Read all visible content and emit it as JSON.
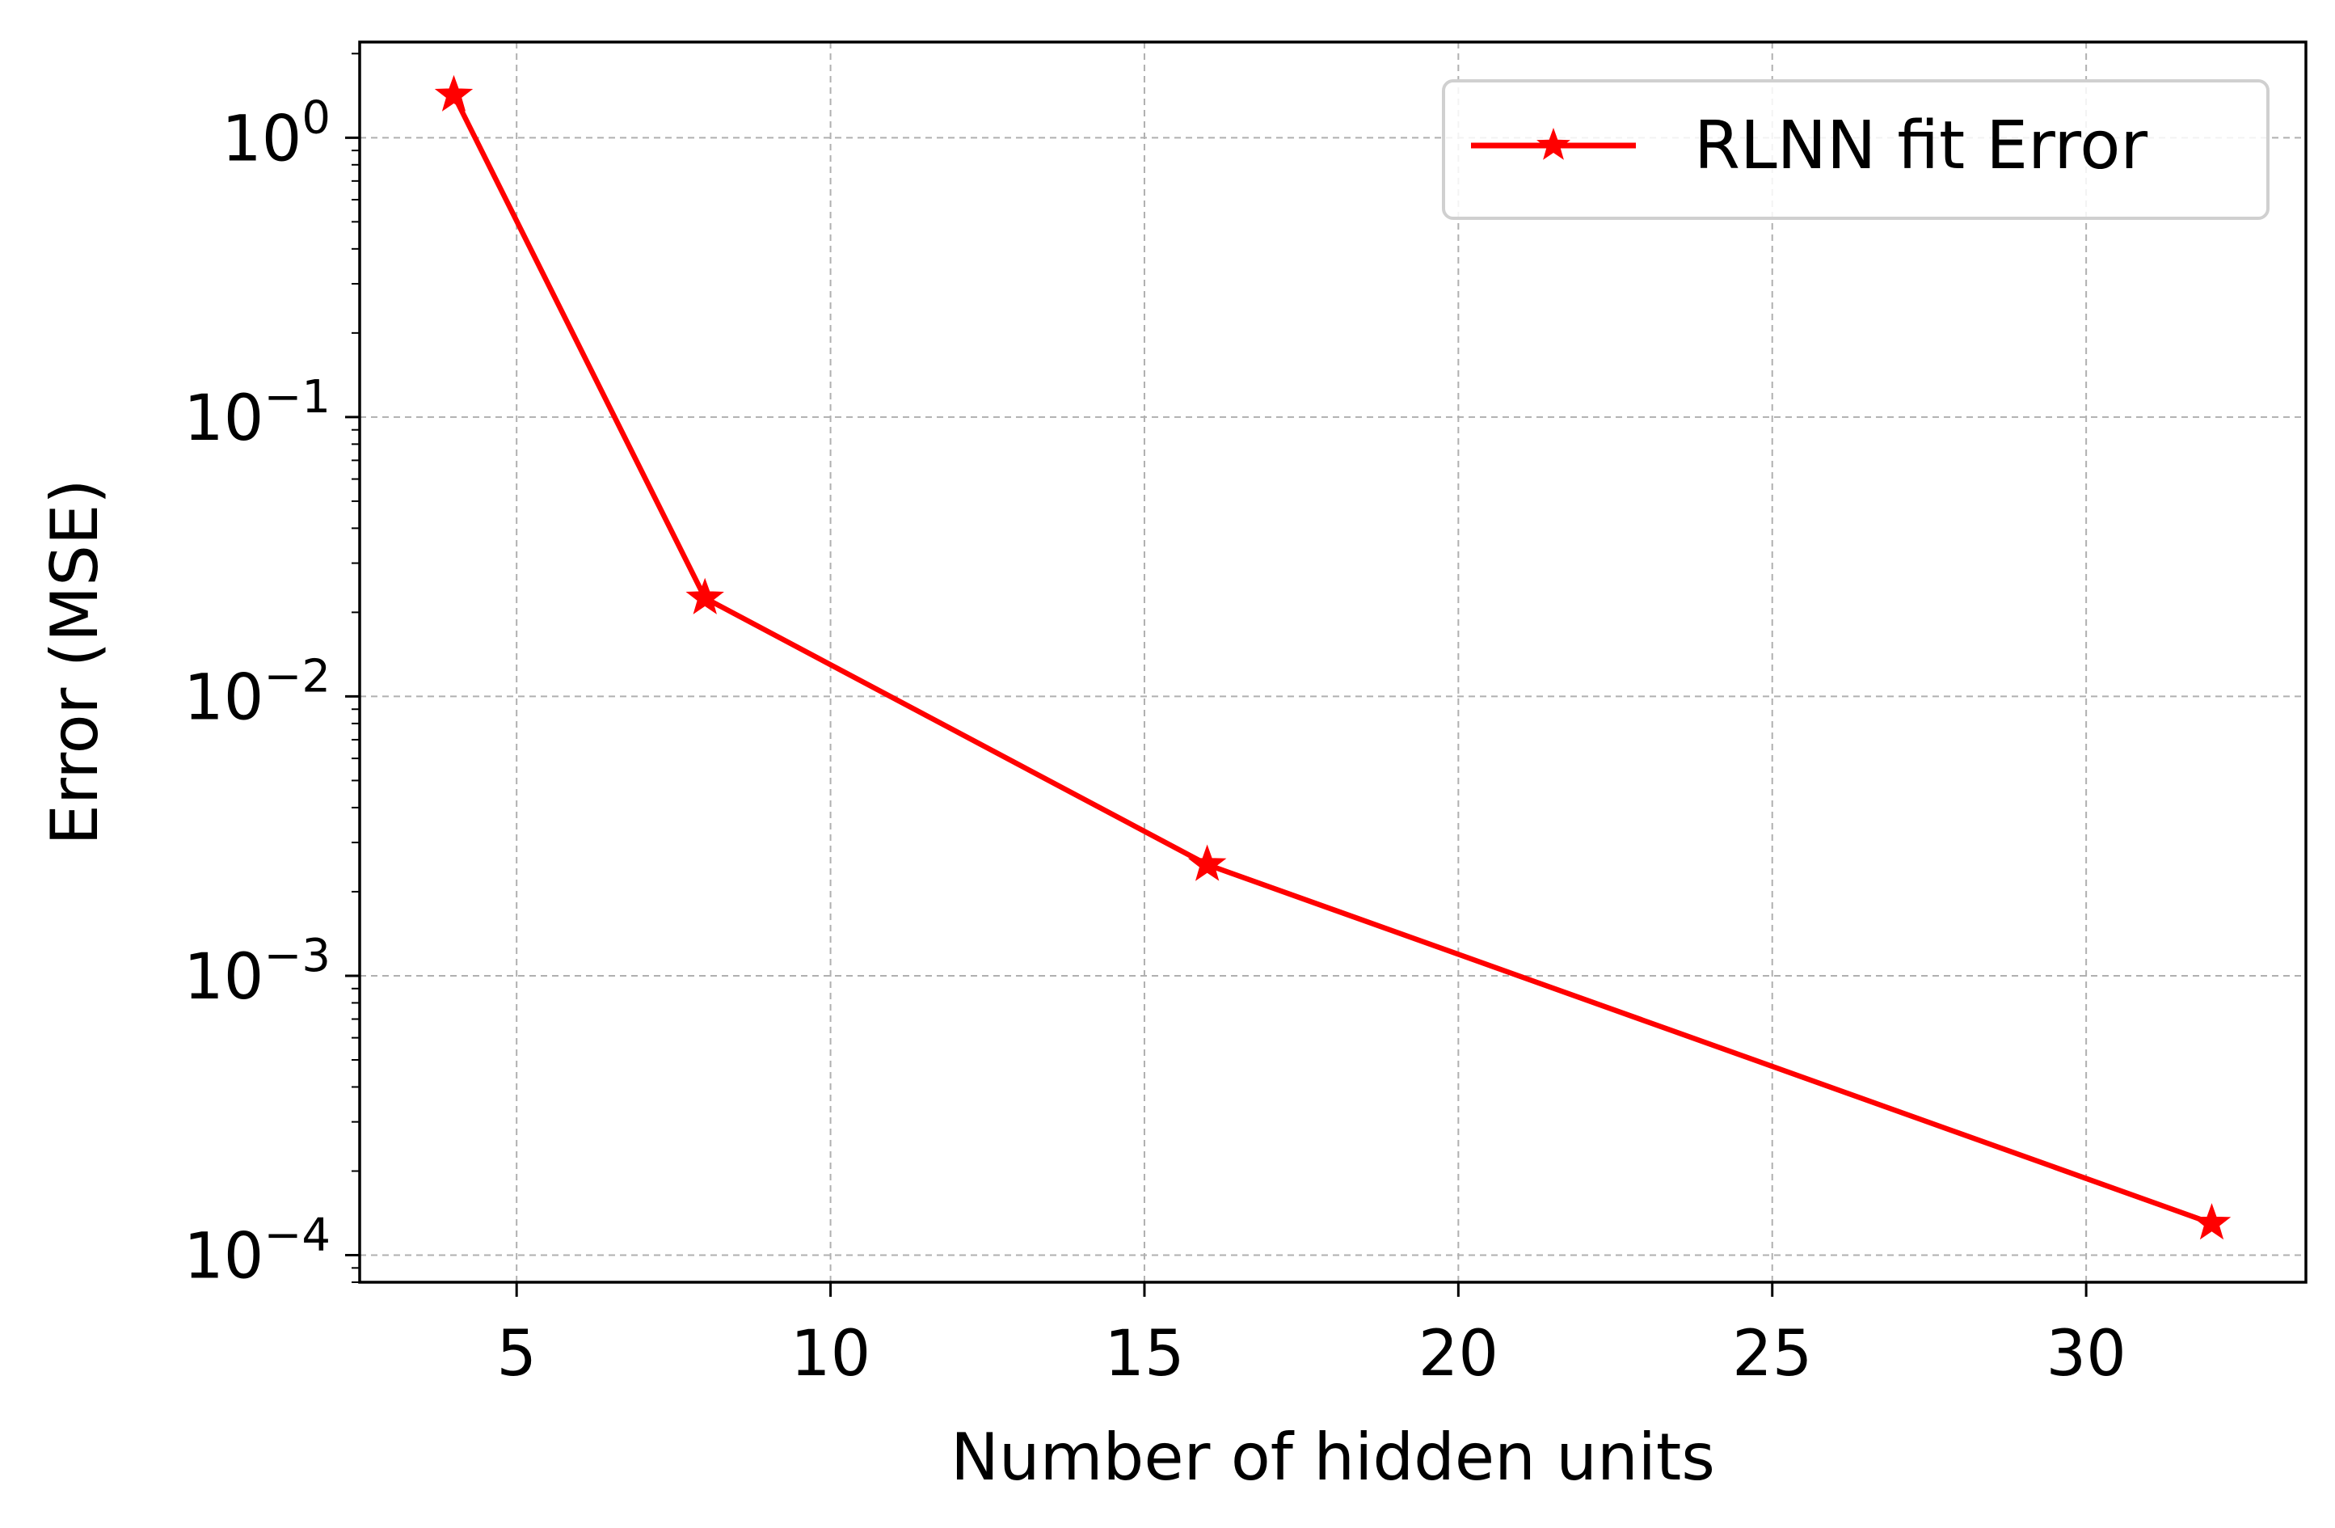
{
  "chart_data": {
    "type": "line",
    "title": "",
    "xlabel": "Number of hidden units",
    "ylabel": "Error (MSE)",
    "x_scale": "linear",
    "y_scale": "log",
    "xlim": [
      2.5,
      33.5
    ],
    "ylim": [
      8e-05,
      2.2
    ],
    "x_ticks": [
      5,
      10,
      15,
      20,
      25,
      30
    ],
    "x_tick_labels": [
      "5",
      "10",
      "15",
      "20",
      "25",
      "30"
    ],
    "y_ticks": [
      {
        "value": 1,
        "base": "10",
        "exp": "0"
      },
      {
        "value": 0.1,
        "base": "10",
        "exp": "−1"
      },
      {
        "value": 0.01,
        "base": "10",
        "exp": "−2"
      },
      {
        "value": 0.001,
        "base": "10",
        "exp": "−3"
      },
      {
        "value": 0.0001,
        "base": "10",
        "exp": "−4"
      }
    ],
    "grid": true,
    "legend": {
      "position": "top-right"
    },
    "series": [
      {
        "name": "RLNN fit Error",
        "color": "#ff0000",
        "marker": "star",
        "x": [
          4,
          8,
          16,
          32
        ],
        "y": [
          1.42,
          0.0225,
          0.0025,
          0.00013
        ]
      }
    ]
  }
}
